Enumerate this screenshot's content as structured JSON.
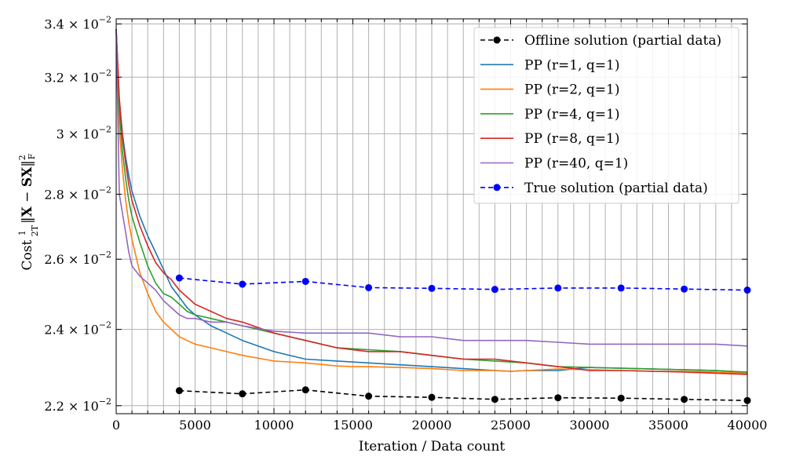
{
  "chart_data": {
    "type": "line",
    "xlabel": "Iteration / Data count",
    "ylabel": "Cost (1/2T)‖X − SX‖²F",
    "xlim": [
      0,
      40000
    ],
    "ylim": [
      0.0218,
      0.0342
    ],
    "y_scale": "log",
    "grid": true,
    "legend_position": "top-right",
    "x_ticks": [
      0,
      5000,
      10000,
      15000,
      20000,
      25000,
      30000,
      35000,
      40000
    ],
    "x_tick_labels": [
      "0",
      "5000",
      "10000",
      "15000",
      "20000",
      "25000",
      "30000",
      "35000",
      "40000"
    ],
    "y_ticks": [
      0.022,
      0.024,
      0.026,
      0.028,
      0.03,
      0.032,
      0.034
    ],
    "y_tick_labels": [
      {
        "mant": "2.2",
        "exp": "−2"
      },
      {
        "mant": "2.4",
        "exp": "−2"
      },
      {
        "mant": "2.6",
        "exp": "−2"
      },
      {
        "mant": "2.8",
        "exp": "−2"
      },
      {
        "mant": "3",
        "exp": "−2"
      },
      {
        "mant": "3.2",
        "exp": "−2"
      },
      {
        "mant": "3.4",
        "exp": "−2"
      }
    ],
    "series": [
      {
        "name": "Offline solution (partial data)",
        "color": "#000000",
        "style": "dashed-markers",
        "x": [
          4000,
          8000,
          12000,
          16000,
          20000,
          24000,
          28000,
          32000,
          36000,
          40000
        ],
        "y": [
          0.02238,
          0.0223,
          0.0224,
          0.02224,
          0.02221,
          0.02216,
          0.0222,
          0.02219,
          0.02216,
          0.02213
        ]
      },
      {
        "name": "PP (r=1, q=1)",
        "color": "#1f77b4",
        "style": "line",
        "x": [
          0,
          200,
          400,
          600,
          800,
          1000,
          1500,
          2000,
          2500,
          3000,
          3500,
          4000,
          4500,
          5000,
          6000,
          7000,
          8000,
          10000,
          12000,
          14000,
          16000,
          18000,
          20000,
          22000,
          24000,
          25000,
          26000,
          28000,
          30000,
          32000,
          34000,
          36000,
          38000,
          40000
        ],
        "y": [
          0.0338,
          0.0312,
          0.03,
          0.0292,
          0.0286,
          0.0281,
          0.0273,
          0.0267,
          0.0262,
          0.0257,
          0.0252,
          0.0249,
          0.0246,
          0.0244,
          0.0241,
          0.0239,
          0.0237,
          0.0234,
          0.0232,
          0.02315,
          0.0231,
          0.02305,
          0.023,
          0.02295,
          0.0229,
          0.02288,
          0.0229,
          0.0229,
          0.02298,
          0.02296,
          0.02294,
          0.02292,
          0.0229,
          0.02285
        ]
      },
      {
        "name": "PP (r=2, q=1)",
        "color": "#ff7f0e",
        "style": "line",
        "x": [
          0,
          200,
          400,
          600,
          800,
          1000,
          1500,
          2000,
          2500,
          3000,
          3500,
          4000,
          4500,
          5000,
          6000,
          7000,
          8000,
          10000,
          12000,
          14000,
          15000,
          16000,
          18000,
          20000,
          22000,
          24000,
          25000,
          26000,
          28000,
          30000,
          32000,
          34000,
          36000,
          38000,
          40000
        ],
        "y": [
          0.0338,
          0.0302,
          0.0288,
          0.0278,
          0.0271,
          0.0266,
          0.0256,
          0.025,
          0.0245,
          0.0242,
          0.024,
          0.0238,
          0.0237,
          0.0236,
          0.0235,
          0.0234,
          0.0233,
          0.02315,
          0.0231,
          0.02302,
          0.023,
          0.023,
          0.02298,
          0.02295,
          0.0229,
          0.0229,
          0.02288,
          0.0229,
          0.02294,
          0.02292,
          0.0229,
          0.02288,
          0.02288,
          0.02286,
          0.02283
        ]
      },
      {
        "name": "PP (r=4, q=1)",
        "color": "#2ca02c",
        "style": "line",
        "x": [
          0,
          200,
          400,
          600,
          800,
          1000,
          1500,
          2000,
          2500,
          3000,
          3500,
          4000,
          4500,
          5000,
          6000,
          7000,
          8000,
          10000,
          12000,
          14000,
          16000,
          18000,
          20000,
          22000,
          24000,
          26000,
          28000,
          30000,
          32000,
          34000,
          36000,
          38000,
          40000
        ],
        "y": [
          0.0338,
          0.0308,
          0.0294,
          0.0285,
          0.0278,
          0.0273,
          0.0265,
          0.0258,
          0.0253,
          0.025,
          0.0249,
          0.0247,
          0.0245,
          0.0244,
          0.0243,
          0.0242,
          0.0241,
          0.0239,
          0.0237,
          0.0235,
          0.02345,
          0.0234,
          0.0233,
          0.0232,
          0.02315,
          0.0231,
          0.023,
          0.02298,
          0.02296,
          0.02294,
          0.02292,
          0.0229,
          0.02286
        ]
      },
      {
        "name": "PP (r=8, q=1)",
        "color": "#d62728",
        "style": "line",
        "x": [
          0,
          200,
          400,
          600,
          800,
          1000,
          1500,
          2000,
          2500,
          3000,
          3500,
          4000,
          4500,
          5000,
          6000,
          7000,
          8000,
          10000,
          12000,
          14000,
          16000,
          18000,
          20000,
          22000,
          24000,
          26000,
          28000,
          30000,
          32000,
          34000,
          36000,
          38000,
          40000
        ],
        "y": [
          0.0338,
          0.0312,
          0.0299,
          0.029,
          0.0283,
          0.0278,
          0.027,
          0.0264,
          0.0259,
          0.0256,
          0.0254,
          0.0251,
          0.0249,
          0.0247,
          0.0245,
          0.0243,
          0.0242,
          0.0239,
          0.0237,
          0.0235,
          0.0234,
          0.0234,
          0.0233,
          0.0232,
          0.0232,
          0.0231,
          0.023,
          0.0229,
          0.0229,
          0.02288,
          0.02286,
          0.02283,
          0.0228
        ]
      },
      {
        "name": "PP (r=40, q=1)",
        "color": "#9467bd",
        "style": "line",
        "x": [
          0,
          200,
          400,
          600,
          800,
          1000,
          1500,
          2000,
          2500,
          3000,
          3500,
          4000,
          4500,
          5000,
          6000,
          7000,
          8000,
          10000,
          12000,
          14000,
          16000,
          18000,
          20000,
          22000,
          24000,
          26000,
          28000,
          30000,
          32000,
          34000,
          36000,
          38000,
          40000
        ],
        "y": [
          0.0338,
          0.028,
          0.0274,
          0.0268,
          0.0262,
          0.0258,
          0.0255,
          0.0253,
          0.0251,
          0.0248,
          0.0246,
          0.0244,
          0.0243,
          0.0243,
          0.0242,
          0.0242,
          0.0241,
          0.02395,
          0.0239,
          0.0239,
          0.0239,
          0.0238,
          0.0238,
          0.0237,
          0.0237,
          0.0237,
          0.02365,
          0.0236,
          0.0236,
          0.0236,
          0.0236,
          0.0236,
          0.02355
        ]
      },
      {
        "name": "True solution (partial data)",
        "color": "#0000ff",
        "style": "dashed-markers",
        "x": [
          4000,
          8000,
          12000,
          16000,
          20000,
          24000,
          28000,
          32000,
          36000,
          40000
        ],
        "y": [
          0.02545,
          0.02527,
          0.02535,
          0.02517,
          0.02515,
          0.02512,
          0.02516,
          0.02516,
          0.02513,
          0.0251
        ]
      }
    ]
  }
}
